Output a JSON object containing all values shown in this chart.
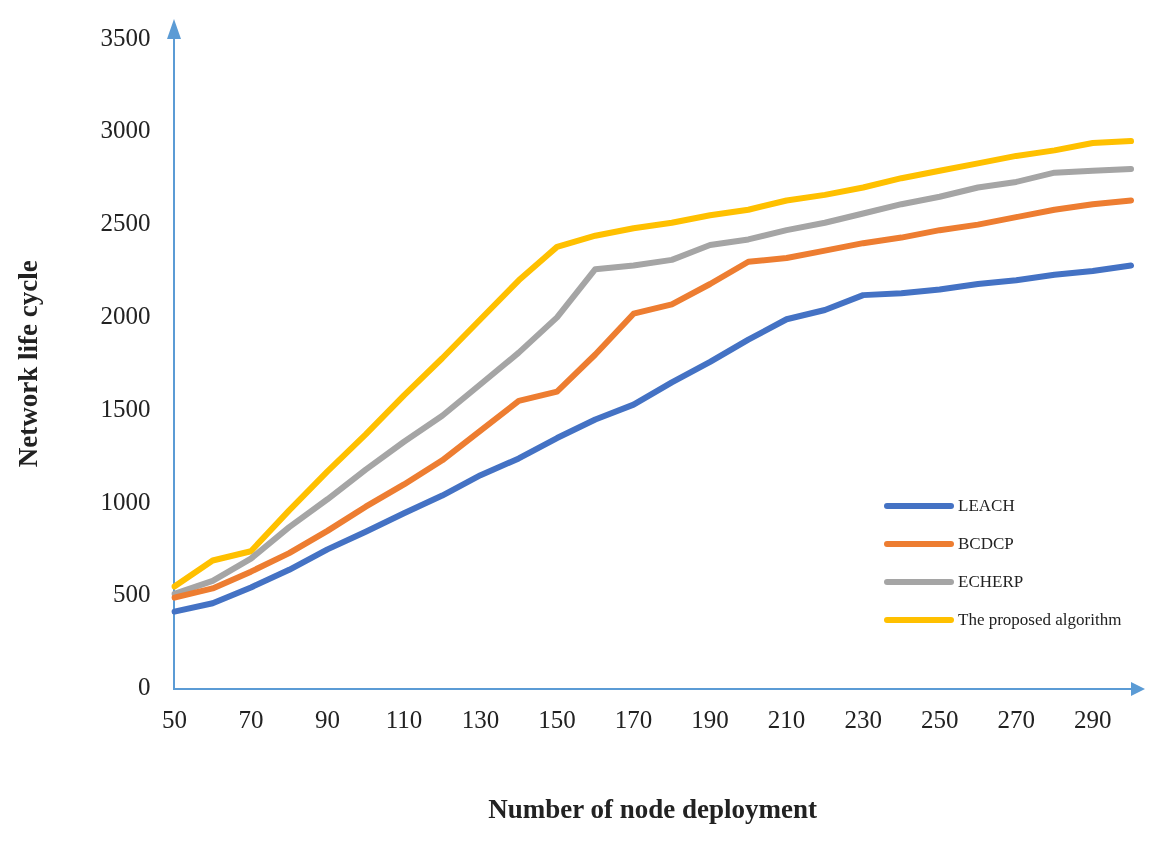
{
  "chart_data": {
    "type": "line",
    "xlabel": "Number of node deployment",
    "ylabel": "Network life cycle",
    "categories": [
      "50",
      null,
      "70",
      null,
      "90",
      null,
      "110",
      null,
      "130",
      null,
      "150",
      null,
      "170",
      null,
      "190",
      null,
      "210",
      null,
      "230",
      null,
      "250",
      null,
      "270",
      null,
      "290",
      null
    ],
    "series": [
      {
        "name": "LEACH",
        "color": "#4472c4",
        "values": [
          415,
          460,
          545,
          640,
          750,
          845,
          945,
          1040,
          1150,
          1240,
          1350,
          1450,
          1530,
          1650,
          1760,
          1880,
          1990,
          2040,
          2120,
          2130,
          2150,
          2180,
          2200,
          2230,
          2250,
          2280
        ]
      },
      {
        "name": "BCDCP",
        "color": "#ed7d31",
        "values": [
          490,
          540,
          630,
          730,
          850,
          980,
          1100,
          1230,
          1390,
          1550,
          1600,
          1800,
          2020,
          2070,
          2180,
          2300,
          2320,
          2360,
          2400,
          2430,
          2470,
          2500,
          2540,
          2580,
          2610,
          2630
        ]
      },
      {
        "name": "ECHERP",
        "color": "#a5a5a5",
        "values": [
          510,
          580,
          700,
          870,
          1020,
          1180,
          1330,
          1470,
          1640,
          1810,
          2000,
          2260,
          2280,
          2310,
          2390,
          2420,
          2470,
          2510,
          2560,
          2610,
          2650,
          2700,
          2730,
          2780,
          2790,
          2800
        ]
      },
      {
        "name": "The proposed algorithm",
        "color": "#ffc000",
        "values": [
          550,
          690,
          740,
          960,
          1170,
          1370,
          1580,
          1780,
          1990,
          2200,
          2380,
          2440,
          2480,
          2510,
          2550,
          2580,
          2630,
          2660,
          2700,
          2750,
          2790,
          2830,
          2870,
          2900,
          2940,
          2950
        ]
      }
    ],
    "ylim": [
      0,
      3500
    ],
    "yticks": [
      0,
      500,
      1000,
      1500,
      2000,
      2500,
      3000,
      3500
    ],
    "grid": false,
    "legend": "bottom right",
    "marker": "none",
    "line_style": "solid"
  }
}
